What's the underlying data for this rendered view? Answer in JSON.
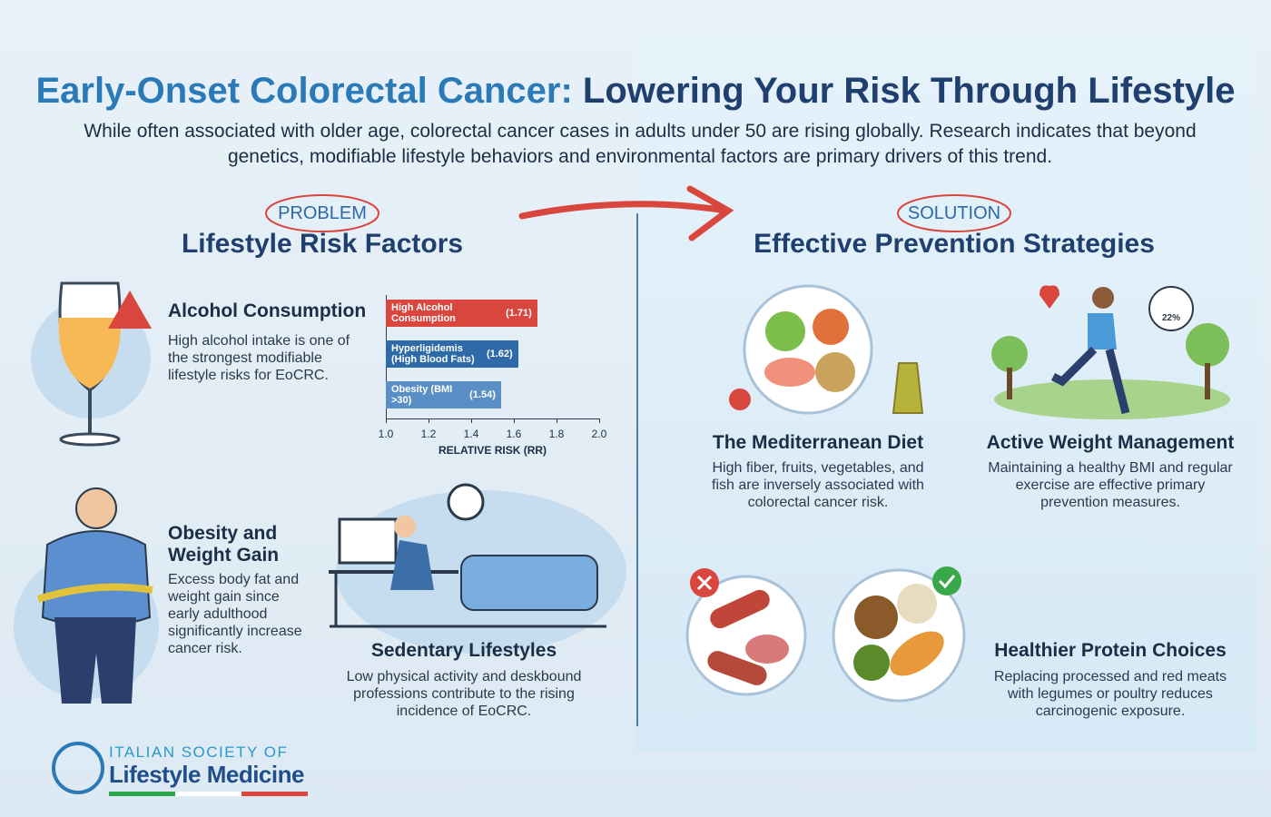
{
  "header": {
    "title_part1": "Early-Onset Colorectal Cancer:",
    "title_part2": "Lowering Your Risk Through Lifestyle",
    "intro": "While often associated with older age, colorectal cancer cases in adults under 50 are rising globally. Research indicates that beyond genetics, modifiable lifestyle behaviors and environmental factors are primary drivers of this trend."
  },
  "problem": {
    "tag": "PROBLEM",
    "heading": "Lifestyle Risk Factors",
    "items": [
      {
        "title": "Alcohol Consumption",
        "text": "High alcohol intake is one of the strongest modifiable lifestyle risks for EoCRC."
      },
      {
        "title": "Obesity and Weight Gain",
        "text": "Excess body fat and weight gain since early adulthood significantly increase cancer risk."
      },
      {
        "title": "Sedentary Lifestyles",
        "text": "Low physical activity and deskbound professions contribute to the rising incidence of EoCRC."
      }
    ]
  },
  "risk_chart": {
    "type": "bar",
    "orientation": "horizontal",
    "categories": [
      "High Alcohol Consumption",
      "Hyperligidemis (High Blood Fats)",
      "Obesity (BMI >30)"
    ],
    "values": [
      1.71,
      1.62,
      1.54
    ],
    "value_labels": [
      "(1.71)",
      "(1.62)",
      "(1.54)"
    ],
    "colors": [
      "#d9463e",
      "#2f6aa8",
      "#5a8fc6"
    ],
    "xlim": [
      1,
      2
    ],
    "xticks": [
      {
        "value": 1,
        "label": "1.0"
      },
      1.2,
      1.4,
      1.6,
      1.8,
      {
        "value": 2,
        "label": "2.0"
      }
    ],
    "xlabel": "RELATIVE RISK (RR)"
  },
  "solution": {
    "tag": "SOLUTION",
    "heading": "Effective Prevention Strategies",
    "items": [
      {
        "title": "The Mediterranean Diet",
        "text": "High fiber, fruits, vegetables, and fish are inversely associated with colorectal cancer risk."
      },
      {
        "title": "Active Weight Management",
        "text": "Maintaining a healthy BMI and regular exercise are effective primary prevention measures."
      },
      {
        "title": "Healthier Protein Choices",
        "text": "Replacing processed and red meats with legumes or poultry reduces carcinogenic exposure."
      }
    ],
    "gauge_label": "22%"
  },
  "logo": {
    "line1": "ITALIAN SOCIETY OF",
    "line2": "Lifestyle Medicine"
  }
}
